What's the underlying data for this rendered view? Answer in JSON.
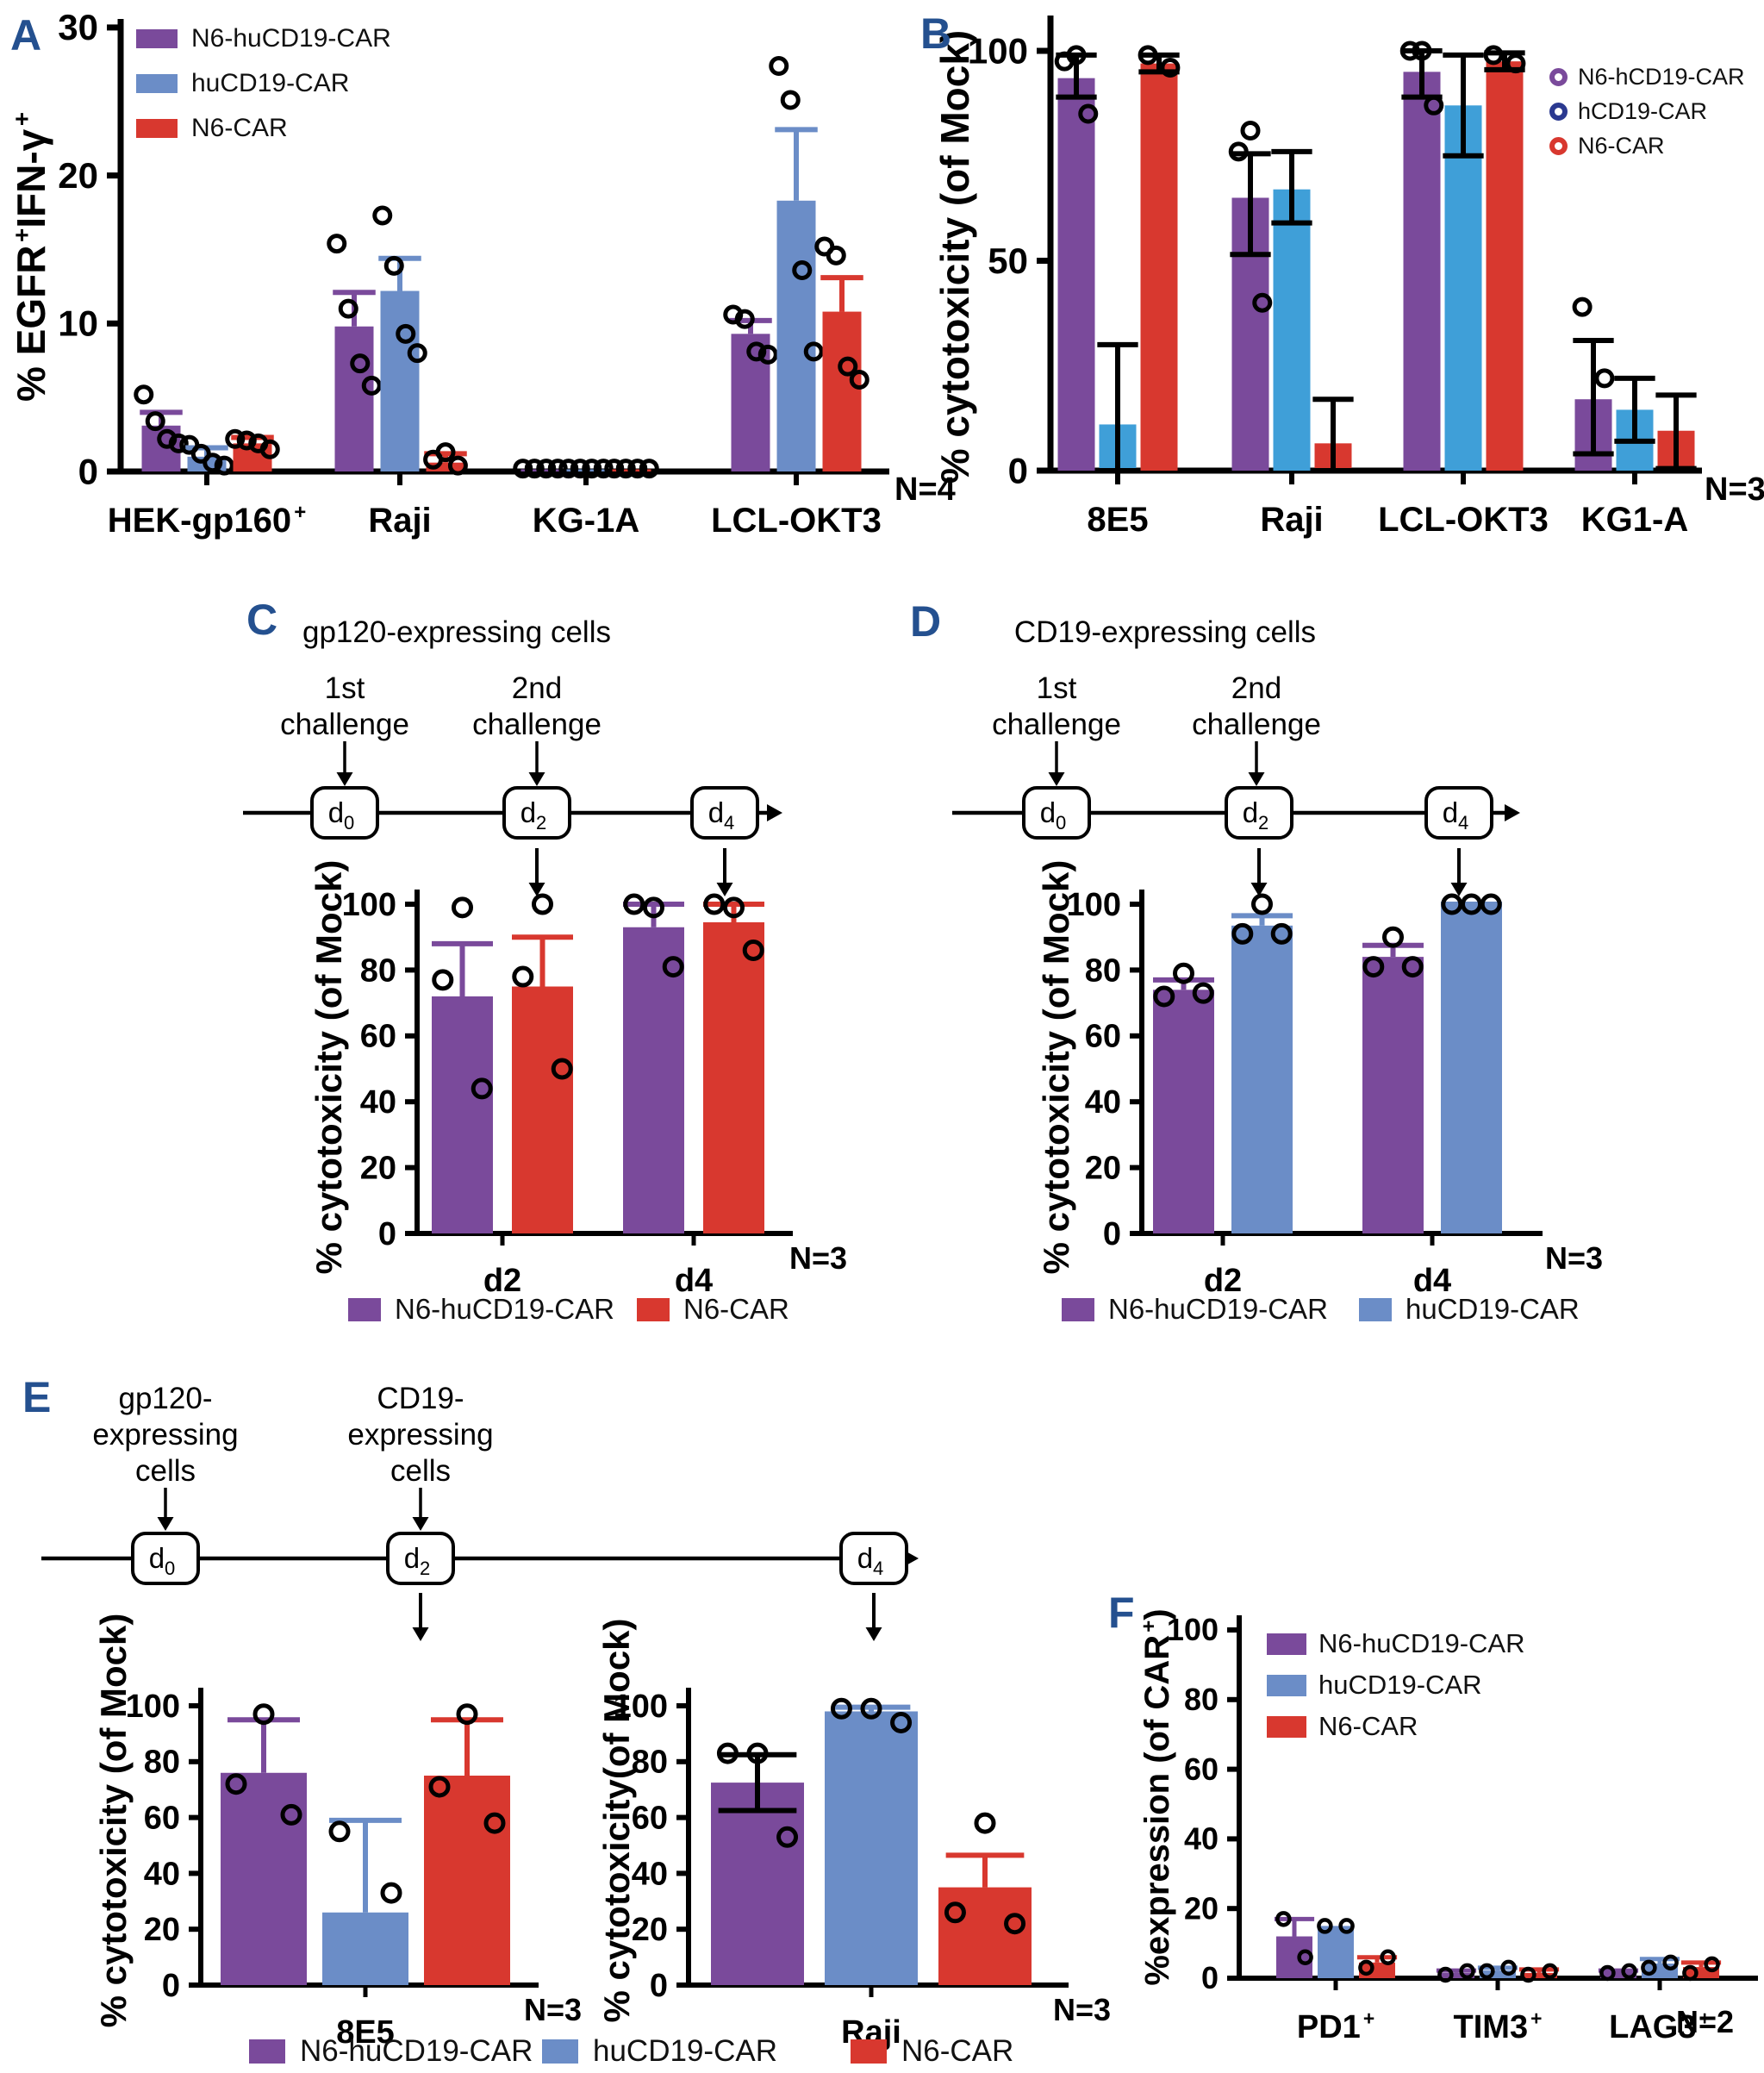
{
  "figure": {
    "panel_letters": {
      "A": "A",
      "B": "B",
      "C": "C",
      "D": "D",
      "E": "E",
      "F": "F"
    },
    "colors": {
      "purple": "#7A4A9B",
      "blue": "#6B8DC7",
      "sky": "#3F9FD8",
      "red": "#D8382F",
      "navy": "#2B3990",
      "letter": "#24508F",
      "black": "#000000"
    }
  },
  "chart_data": [
    {
      "id": "A",
      "type": "bar",
      "n_label": "N=4",
      "ylabel": [
        {
          "t": "% EGFR"
        },
        {
          "t": "+",
          "sup": true
        },
        {
          "t": "IFN-γ"
        },
        {
          "t": "+",
          "sup": true
        }
      ],
      "ylim": [
        0,
        30
      ],
      "yticks": [
        0,
        10,
        20,
        30
      ],
      "categories": [
        {
          "base": "HEK-gp160",
          "sup": "+"
        },
        {
          "base": "Raji"
        },
        {
          "base": "KG-1A"
        },
        {
          "base": "LCL-OKT3"
        }
      ],
      "series": [
        {
          "name": "N6-huCD19-CAR",
          "color_key": "purple",
          "values": [
            3.1,
            9.8,
            0.15,
            9.3
          ],
          "err_hi": [
            4.0,
            12.1,
            null,
            10.2
          ],
          "points": [
            [
              5.2,
              3.4,
              2.2,
              1.9
            ],
            [
              15.4,
              11.0,
              7.3,
              5.8
            ],
            [
              0.2,
              0.2,
              0.2,
              0.2
            ],
            [
              10.6,
              10.3,
              8.1,
              7.9
            ]
          ]
        },
        {
          "name": "huCD19-CAR",
          "color_key": "blue",
          "values": [
            1.0,
            12.2,
            0.15,
            18.3
          ],
          "err_hi": [
            1.6,
            14.4,
            null,
            23.1
          ],
          "points": [
            [
              1.8,
              1.2,
              0.6,
              0.4
            ],
            [
              17.3,
              13.9,
              9.3,
              8.0
            ],
            [
              0.2,
              0.2,
              0.2,
              0.2
            ],
            [
              27.4,
              25.1,
              13.6,
              8.1
            ]
          ]
        },
        {
          "name": "N6-CAR",
          "color_key": "red",
          "values": [
            1.9,
            0.6,
            0.15,
            10.8
          ],
          "err_hi": [
            2.3,
            1.2,
            null,
            13.1
          ],
          "points": [
            [
              2.2,
              2.1,
              1.9,
              1.5
            ],
            [
              1.3,
              0.8,
              0.4
            ],
            [
              0.2,
              0.2,
              0.2,
              0.2
            ],
            [
              15.2,
              14.6,
              7.1,
              6.2
            ]
          ]
        }
      ]
    },
    {
      "id": "B",
      "type": "bar",
      "n_label": "N=3",
      "ylabel": [
        {
          "t": "% cytotoxicity (of Mock)"
        }
      ],
      "ylim": [
        0,
        100
      ],
      "yticks": [
        0,
        50,
        100
      ],
      "categories": [
        {
          "base": "8E5"
        },
        {
          "base": "Raji"
        },
        {
          "base": "LCL-OKT3"
        },
        {
          "base": "KG1-A"
        }
      ],
      "series": [
        {
          "name": "N6-hCD19-CAR",
          "color_key": "purple",
          "err_color": "black",
          "values": [
            93.5,
            65,
            95,
            17
          ],
          "err_hi": [
            99,
            75.5,
            100,
            31
          ],
          "err_lo": [
            89,
            51.5,
            89,
            4
          ],
          "points": [
            [
              99,
              97.5,
              85
            ],
            [
              81,
              76,
              40
            ],
            [
              100,
              100,
              87
            ],
            [
              39,
              22
            ]
          ]
        },
        {
          "name": "hCD19-CAR",
          "color_key": "sky",
          "err_color": "black",
          "values": [
            11,
            67,
            87,
            14.5
          ],
          "err_hi": [
            30,
            76,
            99,
            22
          ],
          "err_lo": [
            0,
            59,
            75,
            7
          ],
          "points": [
            [],
            [],
            [],
            []
          ]
        },
        {
          "name": "N6-CAR",
          "color_key": "red",
          "err_color": "black",
          "values": [
            97,
            6.5,
            97.5,
            9.5
          ],
          "err_hi": [
            99,
            17,
            99.5,
            18
          ],
          "err_lo": [
            95,
            0,
            95.5,
            0.5
          ],
          "points": [
            [
              99,
              96
            ],
            [],
            [
              99,
              97
            ],
            []
          ]
        }
      ]
    },
    {
      "id": "C",
      "type": "bar",
      "n_label": "N=3",
      "ylabel": [
        {
          "t": "% cytotoxicity (of Mock)"
        }
      ],
      "ylim": [
        0,
        100
      ],
      "yticks": [
        0,
        20,
        40,
        60,
        80,
        100
      ],
      "categories": [
        {
          "base": "d2"
        },
        {
          "base": "d4"
        }
      ],
      "series": [
        {
          "name": "N6-huCD19-CAR",
          "color_key": "purple",
          "values": [
            72,
            93
          ],
          "err_hi": [
            88,
            100
          ],
          "points": [
            [
              99,
              77,
              44
            ],
            [
              99,
              100,
              81
            ]
          ]
        },
        {
          "name": "N6-CAR",
          "color_key": "red",
          "values": [
            75,
            94.5
          ],
          "err_hi": [
            90,
            100
          ],
          "points": [
            [
              100,
              78,
              50
            ],
            [
              99,
              100,
              86
            ]
          ]
        }
      ]
    },
    {
      "id": "D",
      "type": "bar",
      "n_label": "N=3",
      "ylabel": [
        {
          "t": "% cytotoxicity (of Mock)"
        }
      ],
      "ylim": [
        0,
        100
      ],
      "yticks": [
        0,
        20,
        40,
        60,
        80,
        100
      ],
      "categories": [
        {
          "base": "d2"
        },
        {
          "base": "d4"
        }
      ],
      "series": [
        {
          "name": "N6-huCD19-CAR",
          "color_key": "purple",
          "values": [
            74,
            84
          ],
          "err_hi": [
            77,
            87.5
          ],
          "points": [
            [
              79,
              72,
              73
            ],
            [
              90,
              81,
              81
            ]
          ]
        },
        {
          "name": "huCD19-CAR",
          "color_key": "blue",
          "values": [
            93.5,
            99.8
          ],
          "err_hi": [
            96.5,
            100
          ],
          "points": [
            [
              100,
              91,
              91
            ],
            [
              100,
              100,
              100
            ]
          ]
        }
      ]
    },
    {
      "id": "E1",
      "type": "bar",
      "n_label": "N=3",
      "ylabel": [
        {
          "t": "% cytotoxicity (of Mock)"
        }
      ],
      "ylim": [
        0,
        100
      ],
      "yticks": [
        0,
        20,
        40,
        60,
        80,
        100
      ],
      "categories": [
        {
          "base": "8E5"
        }
      ],
      "series": [
        {
          "name": "N6-huCD19-CAR",
          "color_key": "purple",
          "values": [
            76
          ],
          "err_hi": [
            95
          ],
          "points": [
            [
              97,
              72,
              61
            ]
          ]
        },
        {
          "name": "huCD19-CAR",
          "color_key": "blue",
          "values": [
            26
          ],
          "err_hi": [
            59
          ],
          "points": [
            [
              55,
              33
            ]
          ]
        },
        {
          "name": "N6-CAR",
          "color_key": "red",
          "values": [
            75
          ],
          "err_hi": [
            95
          ],
          "points": [
            [
              97,
              71,
              58
            ]
          ]
        }
      ]
    },
    {
      "id": "E2",
      "type": "bar",
      "n_label": "N=3",
      "ylabel": [
        {
          "t": "% cytotoxicity(of Mock)"
        }
      ],
      "ylim": [
        0,
        100
      ],
      "yticks": [
        0,
        20,
        40,
        60,
        80,
        100
      ],
      "categories": [
        {
          "base": "Raji"
        }
      ],
      "series": [
        {
          "name": "N6-huCD19-CAR",
          "color_key": "purple",
          "err_color": "black",
          "values": [
            72.5
          ],
          "err_hi": [
            82.5
          ],
          "err_lo": [
            62.5
          ],
          "points": [
            [
              83,
              83,
              53
            ]
          ]
        },
        {
          "name": "huCD19-CAR",
          "color_key": "blue",
          "values": [
            98
          ],
          "err_hi": [
            99.5
          ],
          "points": [
            [
              99,
              99,
              94
            ]
          ]
        },
        {
          "name": "N6-CAR",
          "color_key": "red",
          "values": [
            35
          ],
          "err_hi": [
            46.5
          ],
          "points": [
            [
              58,
              26,
              22
            ]
          ]
        }
      ]
    },
    {
      "id": "F",
      "type": "bar",
      "n_label": "N=2",
      "ylabel": [
        {
          "t": "%expression (of CAR"
        },
        {
          "t": "+",
          "sup": true
        },
        {
          "t": ")"
        }
      ],
      "ylim": [
        0,
        100
      ],
      "yticks": [
        0,
        20,
        40,
        60,
        80,
        100
      ],
      "categories": [
        {
          "base": "PD1",
          "sup": "+"
        },
        {
          "base": "TIM3",
          "sup": "+"
        },
        {
          "base": "LAG3",
          "sup": "+"
        }
      ],
      "series": [
        {
          "name": "N6-huCD19-CAR",
          "color_key": "purple",
          "values": [
            12,
            1.5,
            1.8
          ],
          "err_hi": [
            17,
            2.2,
            2.2
          ],
          "points": [
            [
              17,
              6
            ],
            [
              1,
              2
            ],
            [
              1.5,
              2
            ]
          ]
        },
        {
          "name": "huCD19-CAR",
          "color_key": "blue",
          "values": [
            15,
            2.2,
            4.2
          ],
          "err_hi": [
            null,
            3,
            5.5
          ],
          "points": [
            [
              15,
              15
            ],
            [
              2,
              3
            ],
            [
              3,
              4.5
            ]
          ]
        },
        {
          "name": "N6-CAR",
          "color_key": "red",
          "values": [
            4.5,
            1.5,
            3.2
          ],
          "err_hi": [
            6,
            2.5,
            4.5
          ],
          "points": [
            [
              3,
              6
            ],
            [
              1,
              2
            ],
            [
              1.5,
              4
            ]
          ]
        }
      ]
    }
  ],
  "timelines": {
    "C": {
      "title": "gp120-expressing cells",
      "events": [
        {
          "lines": [
            "1st",
            "challenge"
          ]
        },
        {
          "lines": [
            "2nd",
            "challenge"
          ]
        }
      ],
      "nodes": [
        {
          "base": "d",
          "sub": "0"
        },
        {
          "base": "d",
          "sub": "2"
        },
        {
          "base": "d",
          "sub": "4"
        }
      ]
    },
    "D": {
      "title": "CD19-expressing cells",
      "events": [
        {
          "lines": [
            "1st",
            "challenge"
          ]
        },
        {
          "lines": [
            "2nd",
            "challenge"
          ]
        }
      ],
      "nodes": [
        {
          "base": "d",
          "sub": "0"
        },
        {
          "base": "d",
          "sub": "2"
        },
        {
          "base": "d",
          "sub": "4"
        }
      ]
    },
    "E": {
      "title": "",
      "events": [
        {
          "lines": [
            "gp120-",
            "expressing",
            "cells"
          ]
        },
        {
          "lines": [
            "CD19-",
            "expressing",
            "cells"
          ]
        }
      ],
      "nodes": [
        {
          "base": "d",
          "sub": "0"
        },
        {
          "base": "d",
          "sub": "2"
        },
        {
          "base": "d",
          "sub": "4"
        }
      ]
    }
  },
  "legends": {
    "A": {
      "swatch": "rect",
      "items": [
        {
          "label": "N6-huCD19-CAR",
          "color_key": "purple"
        },
        {
          "label": "huCD19-CAR",
          "color_key": "blue"
        },
        {
          "label": "N6-CAR",
          "color_key": "red"
        }
      ]
    },
    "B": {
      "swatch": "ring",
      "items": [
        {
          "label": "N6-hCD19-CAR",
          "color_key": "purple"
        },
        {
          "label": "hCD19-CAR",
          "color_key": "navy"
        },
        {
          "label": "N6-CAR",
          "color_key": "red"
        }
      ]
    },
    "C": {
      "swatch": "rect",
      "items": [
        {
          "label": "N6-huCD19-CAR",
          "color_key": "purple"
        },
        {
          "label": "N6-CAR",
          "color_key": "red"
        }
      ]
    },
    "D": {
      "swatch": "rect",
      "items": [
        {
          "label": "N6-huCD19-CAR",
          "color_key": "purple"
        },
        {
          "label": "huCD19-CAR",
          "color_key": "blue"
        }
      ]
    },
    "E": {
      "swatch": "rect",
      "items": [
        {
          "label": "N6-huCD19-CAR",
          "color_key": "purple"
        },
        {
          "label": "huCD19-CAR",
          "color_key": "blue"
        },
        {
          "label": "N6-CAR",
          "color_key": "red"
        }
      ]
    },
    "F": {
      "swatch": "rect",
      "items": [
        {
          "label": "N6-huCD19-CAR",
          "color_key": "purple"
        },
        {
          "label": "huCD19-CAR",
          "color_key": "blue"
        },
        {
          "label": "N6-CAR",
          "color_key": "red"
        }
      ]
    }
  }
}
